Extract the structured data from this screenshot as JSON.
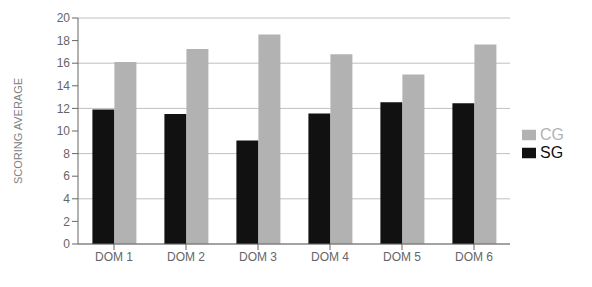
{
  "chart_data": {
    "type": "bar",
    "categories": [
      "DOM 1",
      "DOM 2",
      "DOM 3",
      "DOM 4",
      "DOM 5",
      "DOM 6"
    ],
    "series": [
      {
        "name": "SG",
        "color": "#111111",
        "values": [
          11.9,
          11.5,
          9.15,
          11.55,
          12.55,
          12.45
        ]
      },
      {
        "name": "CG",
        "color": "#b2b2b2",
        "values": [
          16.1,
          17.25,
          18.55,
          16.8,
          15.0,
          17.65
        ]
      }
    ],
    "ylabel": "SCORING AVERAGE",
    "ylim": [
      0,
      20
    ],
    "yticks": [
      0,
      2,
      4,
      6,
      8,
      10,
      12,
      14,
      16,
      18,
      20
    ],
    "grid": true,
    "legend": "right"
  }
}
